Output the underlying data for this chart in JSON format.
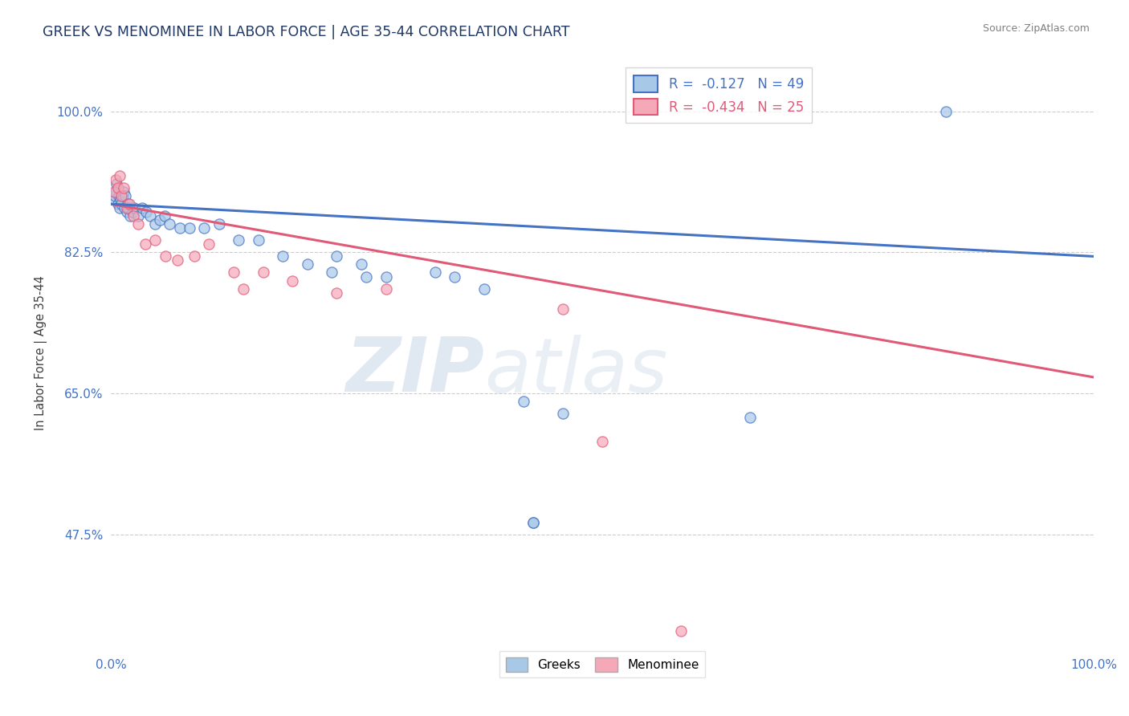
{
  "title": "GREEK VS MENOMINEE IN LABOR FORCE | AGE 35-44 CORRELATION CHART",
  "source": "Source: ZipAtlas.com",
  "ylabel": "In Labor Force | Age 35-44",
  "xlim": [
    0.0,
    1.0
  ],
  "ylim": [
    0.33,
    1.07
  ],
  "x_ticks": [
    0.0,
    1.0
  ],
  "x_tick_labels": [
    "0.0%",
    "100.0%"
  ],
  "y_ticks": [
    0.475,
    0.65,
    0.825,
    1.0
  ],
  "y_tick_labels": [
    "47.5%",
    "65.0%",
    "82.5%",
    "100.0%"
  ],
  "greek_color": "#a8c8e8",
  "menominee_color": "#f4a8b8",
  "greek_line_color": "#4472c4",
  "menominee_line_color": "#e05a78",
  "watermark_zip": "ZIP",
  "watermark_atlas": "atlas",
  "background_color": "#ffffff",
  "greek_R": -0.127,
  "greek_N": 49,
  "menominee_R": -0.434,
  "menominee_N": 25,
  "greek_line_x0": 0.0,
  "greek_line_y0": 0.885,
  "greek_line_x1": 1.0,
  "greek_line_y1": 0.82,
  "menominee_line_x0": 0.0,
  "menominee_line_y0": 0.885,
  "menominee_line_x1": 1.0,
  "menominee_line_y1": 0.67,
  "greek_dots_x": [
    0.003,
    0.004,
    0.005,
    0.006,
    0.007,
    0.008,
    0.009,
    0.01,
    0.011,
    0.012,
    0.013,
    0.014,
    0.015,
    0.016,
    0.017,
    0.018,
    0.02,
    0.022,
    0.024,
    0.028,
    0.032,
    0.036,
    0.04,
    0.045,
    0.05,
    0.055,
    0.06,
    0.07,
    0.08,
    0.095,
    0.11,
    0.13,
    0.15,
    0.175,
    0.2,
    0.225,
    0.255,
    0.28,
    0.23,
    0.26,
    0.38,
    0.35,
    0.33,
    0.42,
    0.46,
    0.43,
    0.43,
    0.65,
    0.85
  ],
  "greek_dots_y": [
    0.89,
    0.895,
    0.9,
    0.91,
    0.885,
    0.895,
    0.88,
    0.89,
    0.885,
    0.895,
    0.9,
    0.88,
    0.895,
    0.875,
    0.885,
    0.88,
    0.87,
    0.875,
    0.88,
    0.87,
    0.88,
    0.875,
    0.87,
    0.86,
    0.865,
    0.87,
    0.86,
    0.855,
    0.855,
    0.855,
    0.86,
    0.84,
    0.84,
    0.82,
    0.81,
    0.8,
    0.81,
    0.795,
    0.82,
    0.795,
    0.78,
    0.795,
    0.8,
    0.64,
    0.625,
    0.49,
    0.49,
    0.62,
    1.0
  ],
  "menominee_dots_x": [
    0.003,
    0.005,
    0.007,
    0.009,
    0.011,
    0.013,
    0.016,
    0.019,
    0.023,
    0.028,
    0.035,
    0.045,
    0.056,
    0.068,
    0.085,
    0.1,
    0.125,
    0.155,
    0.135,
    0.185,
    0.23,
    0.28,
    0.46,
    0.5,
    0.58
  ],
  "menominee_dots_y": [
    0.9,
    0.915,
    0.905,
    0.92,
    0.895,
    0.905,
    0.88,
    0.885,
    0.87,
    0.86,
    0.835,
    0.84,
    0.82,
    0.815,
    0.82,
    0.835,
    0.8,
    0.8,
    0.78,
    0.79,
    0.775,
    0.78,
    0.755,
    0.59,
    0.355
  ]
}
